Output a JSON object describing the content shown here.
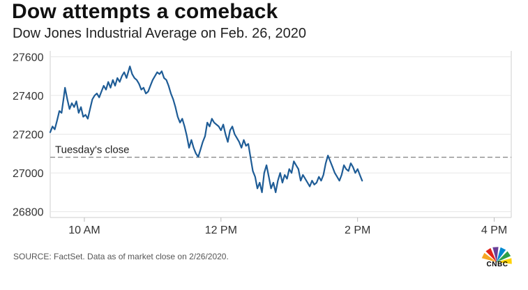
{
  "chart_data": {
    "type": "line",
    "title": "Dow attempts a comeback",
    "subtitle": "Dow Jones Industrial Average on Feb. 26, 2020",
    "xlabel": "",
    "ylabel": "",
    "x_ticks": [
      {
        "label": "10 AM",
        "x": 600
      },
      {
        "label": "12 PM",
        "x": 720
      },
      {
        "label": "2 PM",
        "x": 840
      },
      {
        "label": "4 PM",
        "x": 960
      }
    ],
    "y_ticks": [
      {
        "label": "27600",
        "value": 27600
      },
      {
        "label": "27400",
        "value": 27400
      },
      {
        "label": "27200",
        "value": 27200
      },
      {
        "label": "27000",
        "value": 27000
      },
      {
        "label": "26800",
        "value": 26800
      }
    ],
    "xlim": [
      570,
      975
    ],
    "ylim": [
      26770,
      27630
    ],
    "grid": "horizontal",
    "reference_line": {
      "label": "Tuesday's close",
      "value": 27081
    },
    "series": [
      {
        "color": "#1e5c96",
        "points": [
          [
            570,
            27210
          ],
          [
            572,
            27240
          ],
          [
            574,
            27225
          ],
          [
            576,
            27270
          ],
          [
            578,
            27320
          ],
          [
            580,
            27310
          ],
          [
            582,
            27395
          ],
          [
            583,
            27440
          ],
          [
            585,
            27380
          ],
          [
            587,
            27330
          ],
          [
            589,
            27360
          ],
          [
            591,
            27340
          ],
          [
            593,
            27370
          ],
          [
            595,
            27310
          ],
          [
            597,
            27340
          ],
          [
            599,
            27290
          ],
          [
            601,
            27300
          ],
          [
            603,
            27280
          ],
          [
            605,
            27330
          ],
          [
            607,
            27380
          ],
          [
            609,
            27400
          ],
          [
            611,
            27410
          ],
          [
            613,
            27390
          ],
          [
            615,
            27420
          ],
          [
            617,
            27450
          ],
          [
            619,
            27430
          ],
          [
            621,
            27470
          ],
          [
            623,
            27440
          ],
          [
            625,
            27480
          ],
          [
            627,
            27450
          ],
          [
            629,
            27490
          ],
          [
            631,
            27470
          ],
          [
            633,
            27500
          ],
          [
            635,
            27520
          ],
          [
            637,
            27490
          ],
          [
            639,
            27530
          ],
          [
            640,
            27550
          ],
          [
            642,
            27510
          ],
          [
            644,
            27490
          ],
          [
            646,
            27480
          ],
          [
            648,
            27460
          ],
          [
            650,
            27430
          ],
          [
            652,
            27440
          ],
          [
            654,
            27410
          ],
          [
            656,
            27420
          ],
          [
            658,
            27450
          ],
          [
            660,
            27480
          ],
          [
            662,
            27500
          ],
          [
            664,
            27520
          ],
          [
            666,
            27510
          ],
          [
            668,
            27525
          ],
          [
            670,
            27490
          ],
          [
            672,
            27480
          ],
          [
            674,
            27450
          ],
          [
            676,
            27410
          ],
          [
            678,
            27380
          ],
          [
            680,
            27340
          ],
          [
            682,
            27290
          ],
          [
            684,
            27260
          ],
          [
            686,
            27280
          ],
          [
            688,
            27240
          ],
          [
            690,
            27190
          ],
          [
            692,
            27130
          ],
          [
            694,
            27170
          ],
          [
            696,
            27130
          ],
          [
            698,
            27100
          ],
          [
            700,
            27083
          ],
          [
            702,
            27120
          ],
          [
            704,
            27160
          ],
          [
            706,
            27190
          ],
          [
            708,
            27260
          ],
          [
            710,
            27240
          ],
          [
            712,
            27280
          ],
          [
            714,
            27260
          ],
          [
            716,
            27250
          ],
          [
            718,
            27240
          ],
          [
            720,
            27220
          ],
          [
            722,
            27250
          ],
          [
            724,
            27200
          ],
          [
            726,
            27160
          ],
          [
            728,
            27220
          ],
          [
            730,
            27240
          ],
          [
            732,
            27200
          ],
          [
            734,
            27180
          ],
          [
            736,
            27160
          ],
          [
            738,
            27130
          ],
          [
            740,
            27170
          ],
          [
            742,
            27140
          ],
          [
            744,
            27150
          ],
          [
            746,
            27080
          ],
          [
            748,
            27010
          ],
          [
            750,
            26980
          ],
          [
            752,
            26920
          ],
          [
            754,
            26950
          ],
          [
            756,
            26900
          ],
          [
            758,
            27000
          ],
          [
            760,
            27040
          ],
          [
            762,
            26980
          ],
          [
            764,
            26920
          ],
          [
            766,
            26950
          ],
          [
            768,
            26900
          ],
          [
            770,
            26960
          ],
          [
            772,
            27000
          ],
          [
            774,
            26950
          ],
          [
            776,
            26990
          ],
          [
            778,
            26970
          ],
          [
            780,
            27020
          ],
          [
            782,
            27000
          ],
          [
            784,
            27060
          ],
          [
            786,
            27040
          ],
          [
            788,
            27020
          ],
          [
            790,
            26960
          ],
          [
            792,
            26990
          ],
          [
            794,
            26970
          ],
          [
            796,
            26950
          ],
          [
            798,
            26930
          ],
          [
            800,
            26960
          ],
          [
            802,
            26940
          ],
          [
            804,
            26950
          ],
          [
            806,
            26980
          ],
          [
            808,
            26960
          ],
          [
            810,
            26990
          ],
          [
            812,
            27050
          ],
          [
            814,
            27090
          ],
          [
            816,
            27060
          ],
          [
            818,
            27030
          ],
          [
            820,
            27000
          ],
          [
            822,
            26980
          ],
          [
            824,
            26960
          ],
          [
            826,
            26990
          ],
          [
            828,
            27040
          ],
          [
            830,
            27020
          ],
          [
            832,
            27010
          ],
          [
            834,
            27050
          ],
          [
            836,
            27030
          ],
          [
            838,
            27000
          ],
          [
            840,
            27020
          ],
          [
            842,
            26990
          ],
          [
            844,
            26960
          ]
        ]
      }
    ]
  },
  "source_text": "SOURCE: FactSet. Data as of market close on 2/26/2020.",
  "logo": {
    "text": "CNBC",
    "colors": [
      "#f5a623",
      "#e2231a",
      "#6a3e98",
      "#0089d0",
      "#2d9f48",
      "#ffd200"
    ]
  }
}
